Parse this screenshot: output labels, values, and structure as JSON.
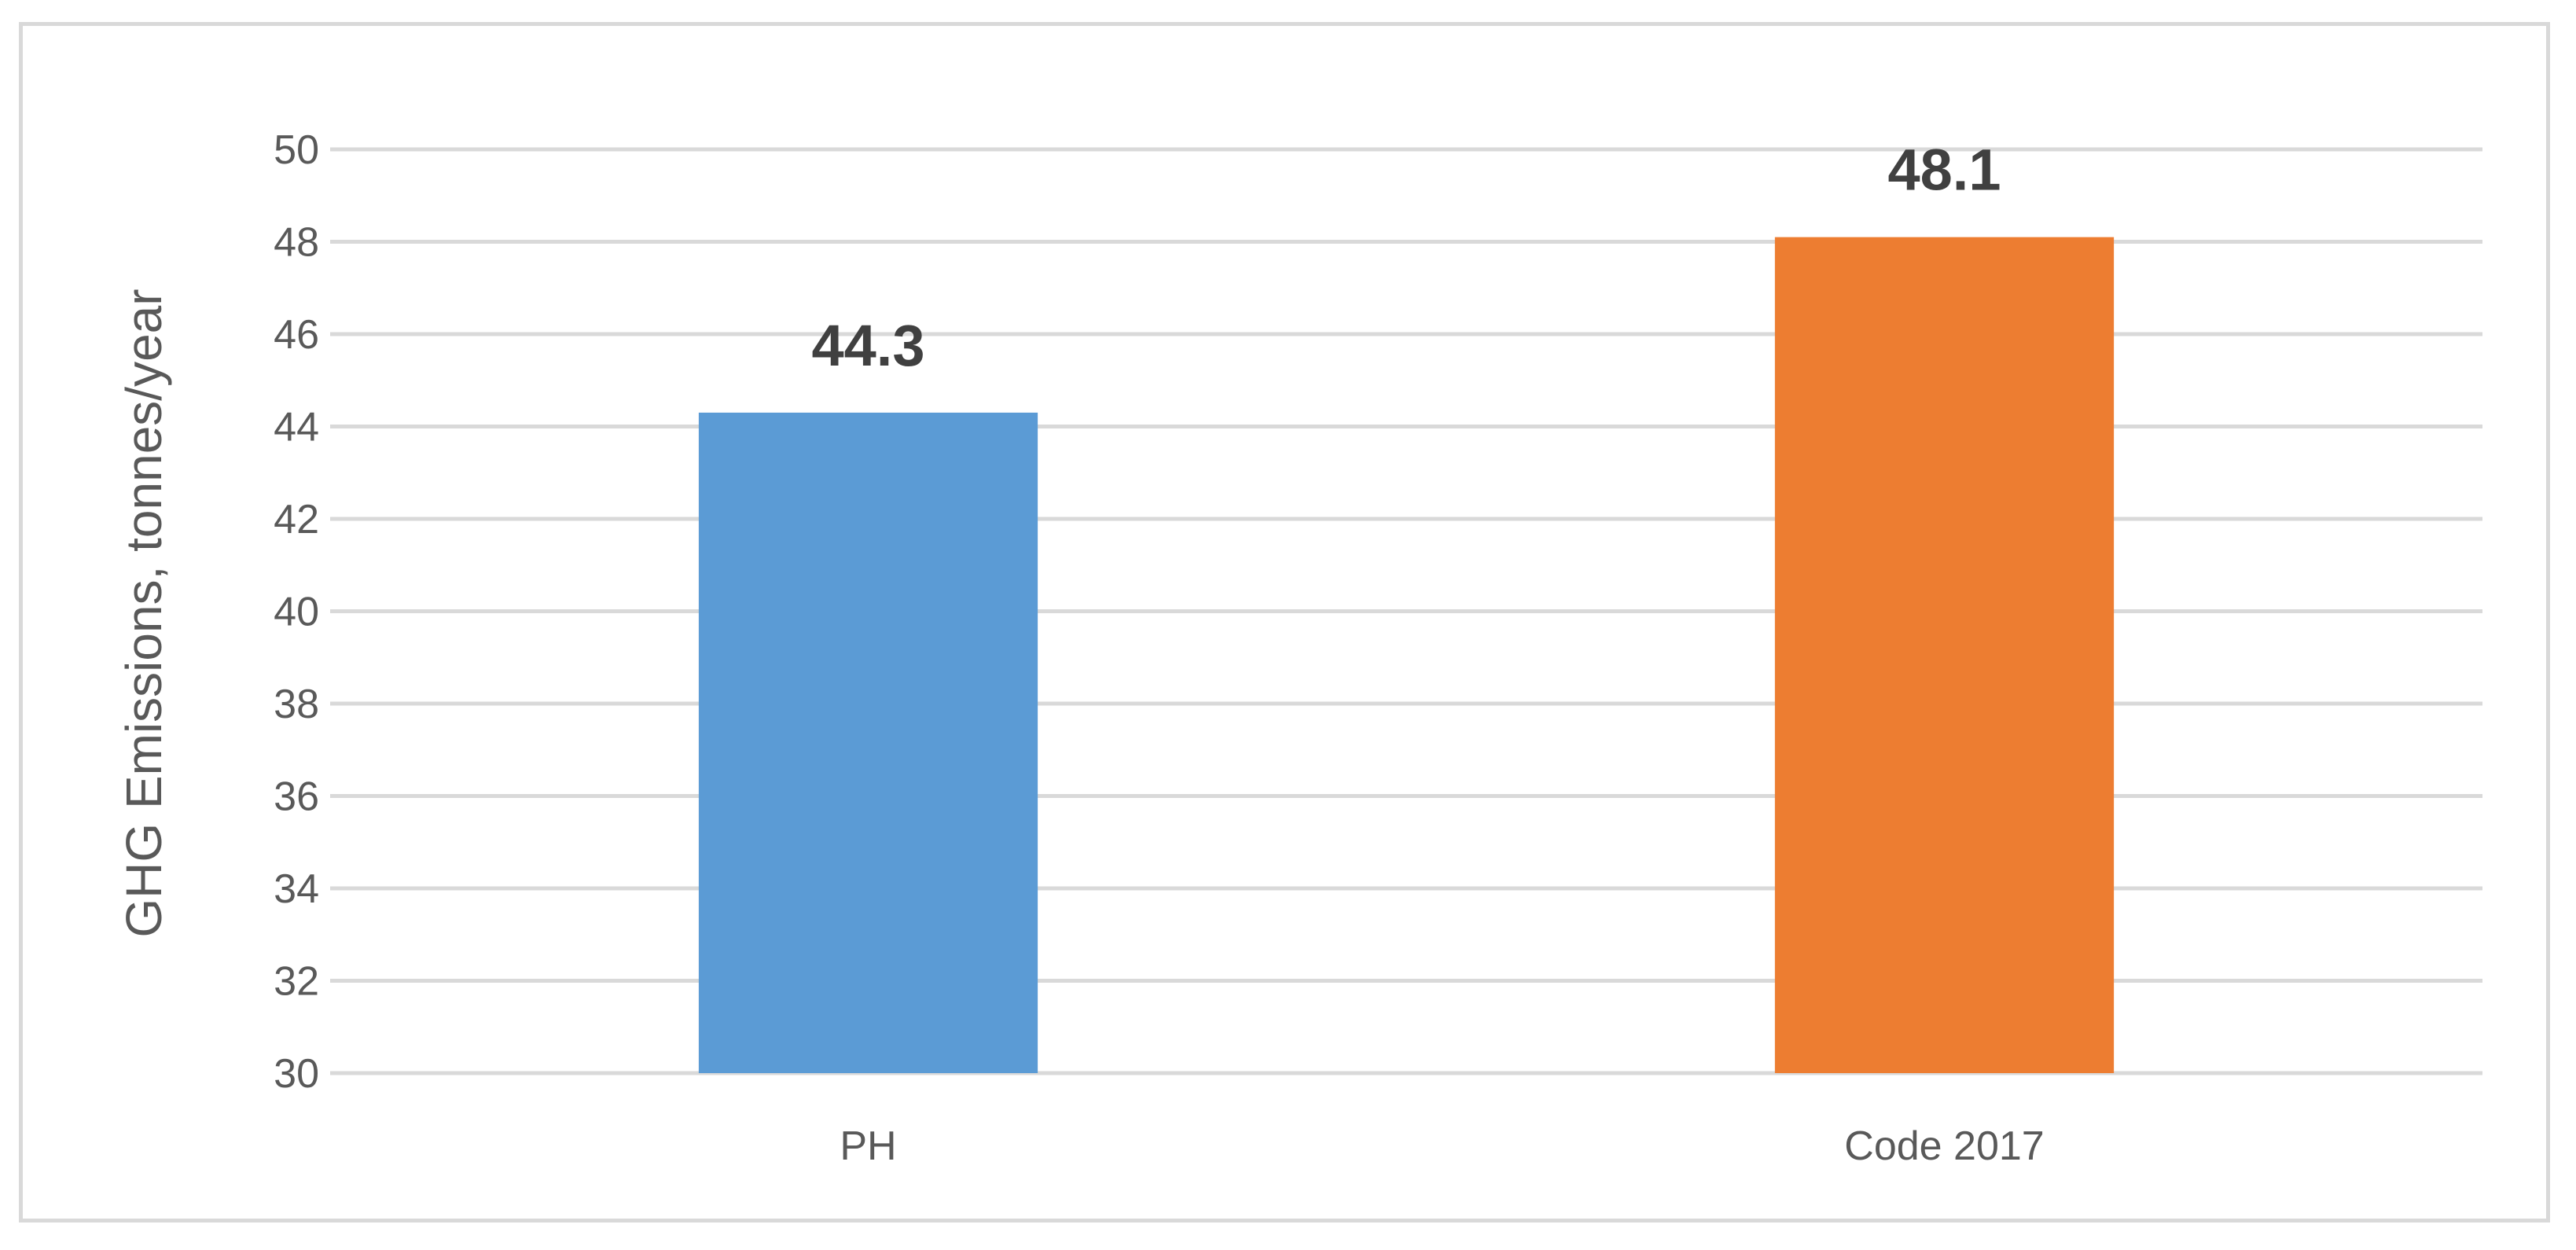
{
  "chart_data": {
    "type": "bar",
    "title": "",
    "xlabel": "",
    "ylabel": "GHG Emissions, tonnes/year",
    "ylim": [
      30,
      50
    ],
    "yticks": [
      30,
      32,
      34,
      36,
      38,
      40,
      42,
      44,
      46,
      48,
      50
    ],
    "grid": true,
    "legend": "none",
    "categories": [
      "PH",
      "Code 2017"
    ],
    "values": [
      44.3,
      48.1
    ],
    "data_labels": [
      "44.3",
      "48.1"
    ],
    "colors": [
      "#5b9bd5",
      "#ed7d31"
    ]
  }
}
